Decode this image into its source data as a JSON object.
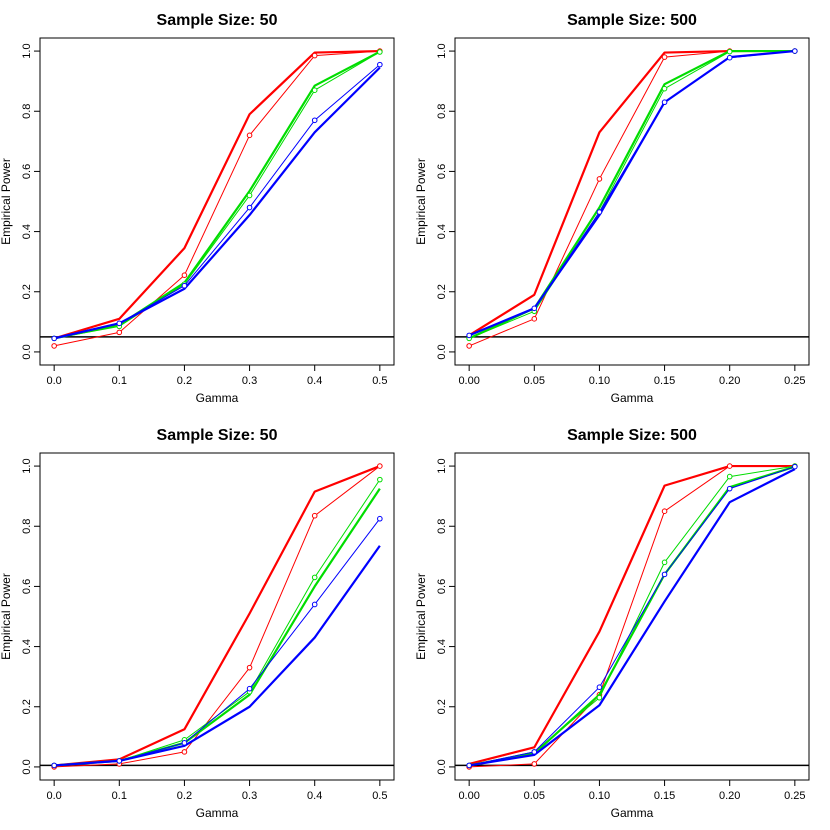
{
  "chart_data": [
    {
      "type": "line",
      "title": "Sample Size:  50",
      "xlabel": "Gamma",
      "ylabel": "Empirical Power",
      "x": [
        0.0,
        0.1,
        0.2,
        0.3,
        0.4,
        0.5
      ],
      "xticks": [
        "0.0",
        "0.1",
        "0.2",
        "0.3",
        "0.4",
        "0.5"
      ],
      "yticks": [
        "0.0",
        "0.2",
        "0.4",
        "0.6",
        "0.8",
        "1.0"
      ],
      "xlim": [
        0.0,
        0.5
      ],
      "ylim": [
        0.0,
        1.0
      ],
      "hline": 0.05,
      "series": [
        {
          "name": "red-thick",
          "color": "#ff0000",
          "style": "thick",
          "values": [
            0.045,
            0.11,
            0.345,
            0.79,
            0.995,
            1.0
          ]
        },
        {
          "name": "red-thin",
          "color": "#ff0000",
          "style": "thin",
          "values": [
            0.02,
            0.065,
            0.255,
            0.72,
            0.985,
            1.0
          ]
        },
        {
          "name": "green-thick",
          "color": "#00dd00",
          "style": "thick",
          "values": [
            0.045,
            0.09,
            0.23,
            0.535,
            0.885,
            0.998
          ]
        },
        {
          "name": "green-thin",
          "color": "#00dd00",
          "style": "thin",
          "values": [
            0.045,
            0.085,
            0.225,
            0.52,
            0.87,
            0.997
          ]
        },
        {
          "name": "blue-thick",
          "color": "#0000ff",
          "style": "thick",
          "values": [
            0.045,
            0.095,
            0.21,
            0.455,
            0.73,
            0.945
          ]
        },
        {
          "name": "blue-thin",
          "color": "#0000ff",
          "style": "thin",
          "values": [
            0.045,
            0.095,
            0.22,
            0.48,
            0.77,
            0.955
          ]
        }
      ]
    },
    {
      "type": "line",
      "title": "Sample Size:  500",
      "xlabel": "Gamma",
      "ylabel": "Empirical Power",
      "x": [
        0.0,
        0.05,
        0.1,
        0.15,
        0.2,
        0.25
      ],
      "xticks": [
        "0.00",
        "0.05",
        "0.10",
        "0.15",
        "0.20",
        "0.25"
      ],
      "yticks": [
        "0.0",
        "0.2",
        "0.4",
        "0.6",
        "0.8",
        "1.0"
      ],
      "xlim": [
        0.0,
        0.25
      ],
      "ylim": [
        0.0,
        1.0
      ],
      "hline": 0.05,
      "series": [
        {
          "name": "red-thick",
          "color": "#ff0000",
          "style": "thick",
          "values": [
            0.055,
            0.19,
            0.73,
            0.995,
            1.0,
            1.0
          ]
        },
        {
          "name": "red-thin",
          "color": "#ff0000",
          "style": "thin",
          "values": [
            0.02,
            0.11,
            0.575,
            0.98,
            1.0,
            1.0
          ]
        },
        {
          "name": "green-thick",
          "color": "#00dd00",
          "style": "thick",
          "values": [
            0.045,
            0.145,
            0.48,
            0.89,
            1.0,
            1.0
          ]
        },
        {
          "name": "green-thin",
          "color": "#00dd00",
          "style": "thin",
          "values": [
            0.045,
            0.135,
            0.465,
            0.875,
            0.998,
            1.0
          ]
        },
        {
          "name": "blue-thick",
          "color": "#0000ff",
          "style": "thick",
          "values": [
            0.055,
            0.145,
            0.455,
            0.83,
            0.98,
            1.0
          ]
        },
        {
          "name": "blue-thin",
          "color": "#0000ff",
          "style": "thin",
          "values": [
            0.055,
            0.145,
            0.465,
            0.83,
            0.978,
            1.0
          ]
        }
      ]
    },
    {
      "type": "line",
      "title": "Sample Size:  50",
      "xlabel": "Gamma",
      "ylabel": "Empirical Power",
      "x": [
        0.0,
        0.1,
        0.2,
        0.3,
        0.4,
        0.5
      ],
      "xticks": [
        "0.0",
        "0.1",
        "0.2",
        "0.3",
        "0.4",
        "0.5"
      ],
      "yticks": [
        "0.0",
        "0.2",
        "0.4",
        "0.6",
        "0.8",
        "1.0"
      ],
      "xlim": [
        0.0,
        0.5
      ],
      "ylim": [
        0.0,
        1.0
      ],
      "hline": 0.005,
      "series": [
        {
          "name": "red-thick",
          "color": "#ff0000",
          "style": "thick",
          "values": [
            0.005,
            0.025,
            0.125,
            0.51,
            0.915,
            1.0
          ]
        },
        {
          "name": "red-thin",
          "color": "#ff0000",
          "style": "thin",
          "values": [
            0.0,
            0.01,
            0.05,
            0.33,
            0.835,
            1.0
          ]
        },
        {
          "name": "green-thick",
          "color": "#00dd00",
          "style": "thick",
          "values": [
            0.005,
            0.02,
            0.08,
            0.24,
            0.6,
            0.925
          ]
        },
        {
          "name": "green-thin",
          "color": "#00dd00",
          "style": "thin",
          "values": [
            0.005,
            0.02,
            0.09,
            0.25,
            0.63,
            0.955
          ]
        },
        {
          "name": "blue-thick",
          "color": "#0000ff",
          "style": "thick",
          "values": [
            0.005,
            0.02,
            0.07,
            0.2,
            0.43,
            0.735
          ]
        },
        {
          "name": "blue-thin",
          "color": "#0000ff",
          "style": "thin",
          "values": [
            0.005,
            0.02,
            0.08,
            0.26,
            0.54,
            0.825
          ]
        }
      ]
    },
    {
      "type": "line",
      "title": "Sample Size:  500",
      "xlabel": "Gamma",
      "ylabel": "Empirical Power",
      "x": [
        0.0,
        0.05,
        0.1,
        0.15,
        0.2,
        0.25
      ],
      "xticks": [
        "0.00",
        "0.05",
        "0.10",
        "0.15",
        "0.20",
        "0.25"
      ],
      "yticks": [
        "0.0",
        "0.2",
        "0.4",
        "0.6",
        "0.8",
        "1.0"
      ],
      "xlim": [
        0.0,
        0.25
      ],
      "ylim": [
        0.0,
        1.0
      ],
      "hline": 0.005,
      "series": [
        {
          "name": "red-thick",
          "color": "#ff0000",
          "style": "thick",
          "values": [
            0.01,
            0.065,
            0.45,
            0.935,
            1.0,
            1.0
          ]
        },
        {
          "name": "red-thin",
          "color": "#ff0000",
          "style": "thin",
          "values": [
            0.0,
            0.01,
            0.24,
            0.85,
            1.0,
            1.0
          ]
        },
        {
          "name": "green-thick",
          "color": "#00dd00",
          "style": "thick",
          "values": [
            0.005,
            0.045,
            0.24,
            0.64,
            0.93,
            0.998
          ]
        },
        {
          "name": "green-thin",
          "color": "#00dd00",
          "style": "thin",
          "values": [
            0.005,
            0.05,
            0.23,
            0.68,
            0.965,
            1.0
          ]
        },
        {
          "name": "blue-thick",
          "color": "#0000ff",
          "style": "thick",
          "values": [
            0.005,
            0.04,
            0.205,
            0.55,
            0.88,
            0.99
          ]
        },
        {
          "name": "blue-thin",
          "color": "#0000ff",
          "style": "thin",
          "values": [
            0.005,
            0.05,
            0.265,
            0.64,
            0.925,
            0.998
          ]
        }
      ]
    }
  ]
}
